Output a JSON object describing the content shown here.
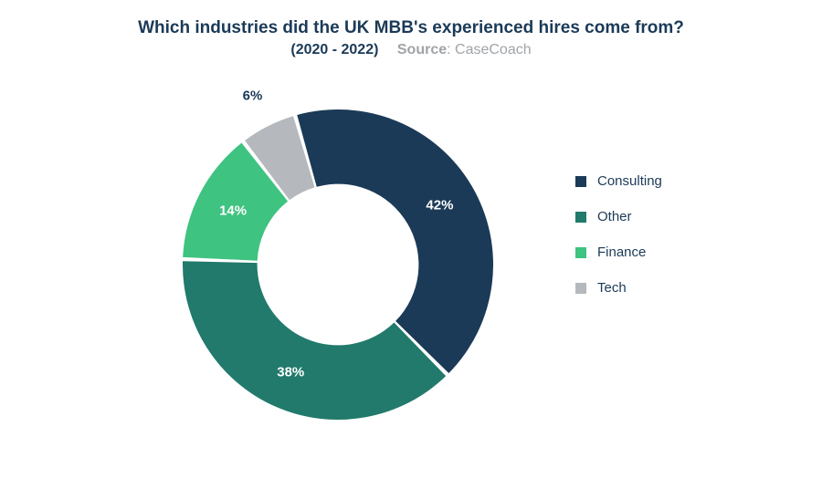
{
  "header": {
    "title": "Which industries did the UK MBB's experienced hires come from?",
    "years": "(2020 - 2022)",
    "source_label": "Source",
    "source_value": ": CaseCoach"
  },
  "chart": {
    "type": "donut",
    "background_color": "#ffffff",
    "inner_radius_ratio": 0.52,
    "gap_deg": 1.5,
    "start_angle_deg": -16,
    "title_fontsize": 19,
    "title_color": "#1b3a57",
    "label_fontsize": 15,
    "label_fontweight": 700,
    "legend_fontsize": 15,
    "legend_color": "#1b3a57",
    "slices": [
      {
        "name": "Consulting",
        "value": 42,
        "label": "42%",
        "color": "#1b3a57",
        "label_color": "#ffffff"
      },
      {
        "name": "Other",
        "value": 38,
        "label": "38%",
        "color": "#217a6b",
        "label_color": "#ffffff"
      },
      {
        "name": "Finance",
        "value": 14,
        "label": "14%",
        "color": "#3fc380",
        "label_color": "#ffffff"
      },
      {
        "name": "Tech",
        "value": 6,
        "label": "6%",
        "color": "#b5b9bd",
        "label_color": "#1b3a57",
        "label_offset": 1.22
      }
    ],
    "legend": [
      {
        "label": "Consulting",
        "color": "#1b3a57"
      },
      {
        "label": "Other",
        "color": "#217a6b"
      },
      {
        "label": "Finance",
        "color": "#3fc380"
      },
      {
        "label": "Tech",
        "color": "#b5b9bd"
      }
    ]
  }
}
